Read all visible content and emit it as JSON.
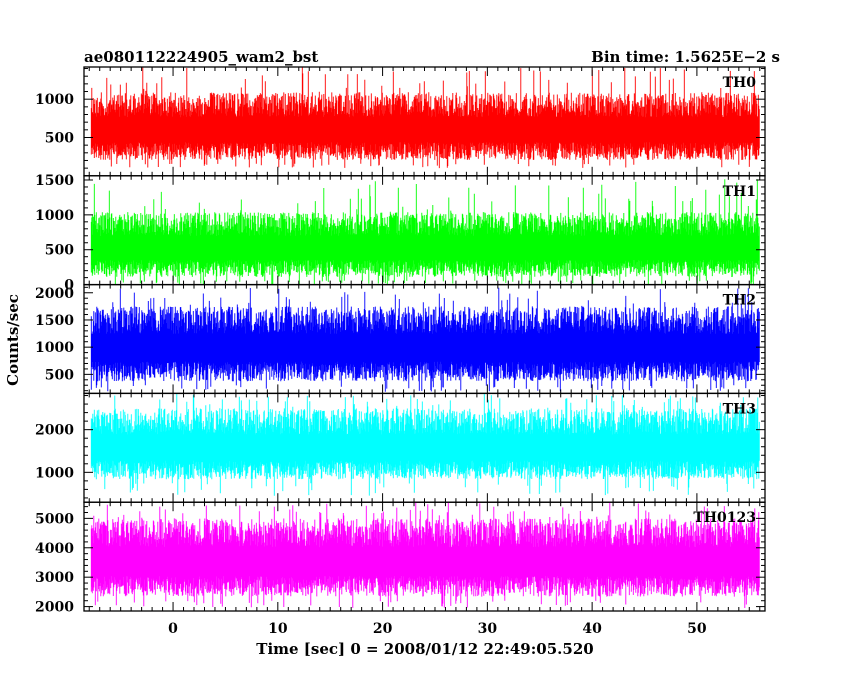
{
  "header": {
    "title": "ae080112224905_wam2_bst",
    "bin_time": "Bin time: 1.5625E−2 s"
  },
  "chart_data": {
    "type": "line",
    "xlabel": "Time [sec] 0 = 2008/01/12 22:49:05.520",
    "ylabel": "Counts/sec",
    "xlim": [
      -8.5,
      56.5
    ],
    "x_data_range": [
      -7.8,
      56.0
    ],
    "x_ticks": [
      "0",
      "10",
      "20",
      "30",
      "40",
      "50"
    ],
    "x_tick_values": [
      0,
      10,
      20,
      30,
      40,
      50
    ],
    "bin_time_s": 0.015625,
    "grid": false,
    "panels": [
      {
        "name": "TH0",
        "color": "#ff0000",
        "ylim": [
          0,
          1420
        ],
        "y_ticks": [
          500,
          1000
        ],
        "y_tick_labels": [
          "500",
          "1000"
        ],
        "extra_top_label": "",
        "typical_low": 160,
        "typical_high": 1090,
        "min": 100,
        "max": 1420
      },
      {
        "name": "TH1",
        "color": "#00ff00",
        "ylim": [
          0,
          1560
        ],
        "y_ticks": [
          0,
          500,
          1000,
          1500
        ],
        "y_tick_labels": [
          "0",
          "500",
          "1000",
          "1500"
        ],
        "extra_top_label": "",
        "typical_low": 60,
        "typical_high": 1040,
        "min": 0,
        "max": 1520
      },
      {
        "name": "TH2",
        "color": "#0000ff",
        "ylim": [
          150,
          2150
        ],
        "y_ticks": [
          500,
          1000,
          1500,
          2000
        ],
        "y_tick_labels": [
          "500",
          "1000",
          "1500",
          "2000"
        ],
        "extra_top_label": "",
        "typical_low": 300,
        "typical_high": 1750,
        "min": 180,
        "max": 2100
      },
      {
        "name": "TH3",
        "color": "#00ffff",
        "ylim": [
          300,
          2850
        ],
        "y_ticks": [
          1000,
          2000
        ],
        "y_tick_labels": [
          "1000",
          "2000"
        ],
        "extra_top_label": "",
        "typical_low": 750,
        "typical_high": 2500,
        "min": 450,
        "max": 2850
      },
      {
        "name": "TH0123",
        "color": "#ff00ff",
        "ylim": [
          1850,
          5550
        ],
        "y_ticks": [
          2000,
          3000,
          4000,
          5000
        ],
        "y_tick_labels": [
          "2000",
          "3000",
          "4000",
          "5000"
        ],
        "extra_top_label": "",
        "typical_low": 2200,
        "typical_high": 5000,
        "min": 1950,
        "max": 5550
      }
    ]
  }
}
